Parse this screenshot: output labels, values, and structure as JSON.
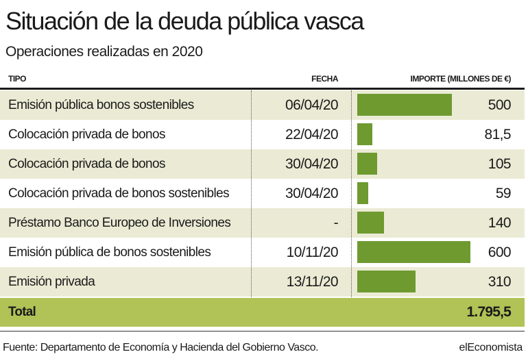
{
  "header": {
    "title": "Situación de la deuda pública vasca",
    "subtitle": "Operaciones realizadas en 2020"
  },
  "columns": {
    "tipo": "TIPO",
    "fecha": "FECHA",
    "importe": "IMPORTE (MILLONES DE €)"
  },
  "chart_data": {
    "type": "bar",
    "rows": [
      {
        "tipo": "Emisión pública bonos sostenibles",
        "fecha": "06/04/20",
        "label": "500",
        "value": 500
      },
      {
        "tipo": "Colocación privada de bonos",
        "fecha": "22/04/20",
        "label": "81,5",
        "value": 81.5
      },
      {
        "tipo": "Colocación privada de bonos",
        "fecha": "30/04/20",
        "label": "105",
        "value": 105
      },
      {
        "tipo": "Colocación privada de bonos sostenibles",
        "fecha": "30/04/20",
        "label": "59",
        "value": 59
      },
      {
        "tipo": "Préstamo Banco Europeo de Inversiones",
        "fecha": "-",
        "label": "140",
        "value": 140
      },
      {
        "tipo": "Emisión pública de bonos sostenibles",
        "fecha": "10/11/20",
        "label": "600",
        "value": 600
      },
      {
        "tipo": "Emisión privada",
        "fecha": "13/11/20",
        "label": "310",
        "value": 310
      }
    ],
    "xlim": [
      0,
      600
    ],
    "bar_color": "#6e9a30"
  },
  "total": {
    "label": "Total",
    "value": "1.795,5"
  },
  "footer": {
    "source": "Fuente: Departamento de Economía y Hacienda del Gobierno Vasco.",
    "brand": "elEconomista"
  },
  "colors": {
    "row_shade": "#ebebd5",
    "total_bg": "#b1c256"
  }
}
